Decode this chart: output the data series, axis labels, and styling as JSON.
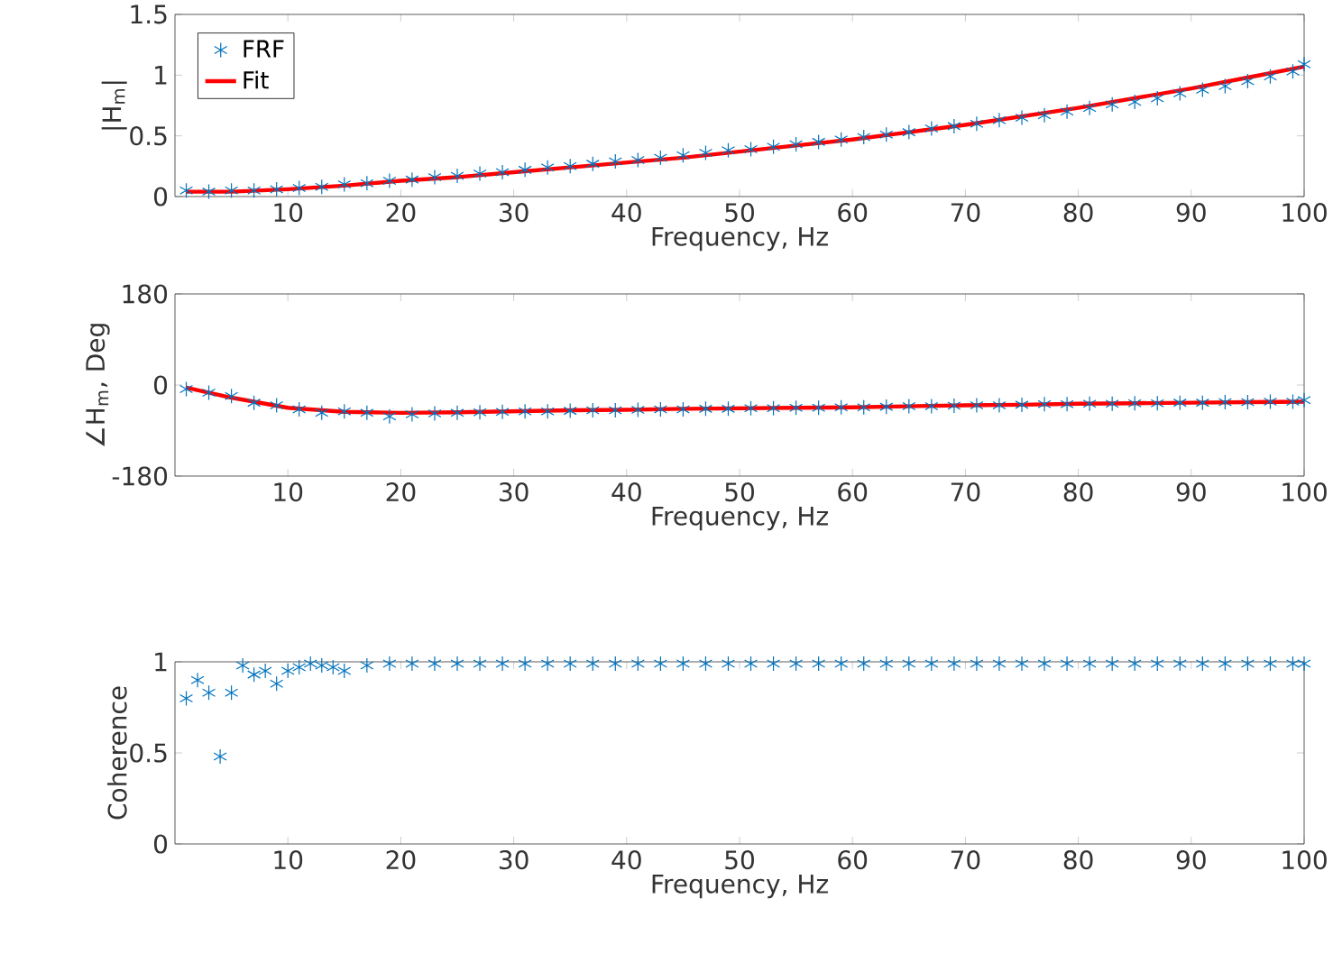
{
  "chart_data": [
    {
      "type": "scatter",
      "xlabel": "Frequency, Hz",
      "ylabel": "|H$_{m}$|",
      "xlim": [
        0,
        100
      ],
      "xticks": [
        10,
        20,
        30,
        40,
        50,
        60,
        70,
        80,
        90,
        100
      ],
      "ylim": [
        0,
        1.5
      ],
      "yticks": [
        0,
        0.5,
        1,
        1.5
      ],
      "legend": "top left",
      "series": [
        {
          "name": "FRF",
          "marker": "cross",
          "color": "#0072bd",
          "x": [
            1,
            3,
            5,
            7,
            9,
            11,
            13,
            15,
            17,
            19,
            21,
            23,
            25,
            27,
            29,
            31,
            33,
            35,
            37,
            39,
            41,
            43,
            45,
            47,
            49,
            51,
            53,
            55,
            57,
            59,
            61,
            63,
            65,
            67,
            69,
            71,
            73,
            75,
            77,
            79,
            81,
            83,
            85,
            87,
            89,
            91,
            93,
            95,
            97,
            99,
            100
          ],
          "values": [
            0.05,
            0.04,
            0.05,
            0.05,
            0.06,
            0.07,
            0.08,
            0.1,
            0.11,
            0.13,
            0.14,
            0.16,
            0.17,
            0.19,
            0.2,
            0.22,
            0.24,
            0.25,
            0.27,
            0.29,
            0.3,
            0.32,
            0.34,
            0.36,
            0.38,
            0.39,
            0.41,
            0.43,
            0.45,
            0.47,
            0.49,
            0.51,
            0.53,
            0.56,
            0.58,
            0.6,
            0.63,
            0.65,
            0.67,
            0.7,
            0.73,
            0.76,
            0.78,
            0.81,
            0.85,
            0.88,
            0.91,
            0.95,
            0.99,
            1.03,
            1.09
          ]
        },
        {
          "name": "Fit",
          "type": "line",
          "marker": "none",
          "color": "#ff0000",
          "x": [
            1,
            5,
            10,
            15,
            20,
            25,
            30,
            35,
            40,
            45,
            50,
            55,
            60,
            65,
            70,
            75,
            80,
            85,
            90,
            95,
            100
          ],
          "values": [
            0.04,
            0.04,
            0.06,
            0.09,
            0.13,
            0.16,
            0.2,
            0.24,
            0.28,
            0.32,
            0.37,
            0.42,
            0.47,
            0.53,
            0.59,
            0.66,
            0.73,
            0.81,
            0.89,
            0.98,
            1.07
          ]
        }
      ]
    },
    {
      "type": "scatter",
      "xlabel": "Frequency, Hz",
      "ylabel": "∠H$_{m}$, Deg",
      "xlim": [
        0,
        100
      ],
      "xticks": [
        10,
        20,
        30,
        40,
        50,
        60,
        70,
        80,
        90,
        100
      ],
      "ylim": [
        -180,
        180
      ],
      "yticks": [
        -180,
        0,
        180
      ],
      "series": [
        {
          "marker": "cross",
          "color": "#0072bd",
          "x": [
            1,
            3,
            5,
            7,
            9,
            11,
            13,
            15,
            17,
            19,
            21,
            23,
            25,
            27,
            29,
            31,
            33,
            35,
            37,
            39,
            41,
            43,
            45,
            47,
            49,
            51,
            53,
            55,
            57,
            59,
            61,
            63,
            65,
            67,
            69,
            71,
            73,
            75,
            77,
            79,
            81,
            83,
            85,
            87,
            89,
            91,
            93,
            95,
            97,
            99,
            100
          ],
          "values": [
            -8,
            -15,
            -22,
            -35,
            -40,
            -48,
            -55,
            -52,
            -55,
            -62,
            -58,
            -56,
            -55,
            -54,
            -53,
            -52,
            -52,
            -51,
            -50,
            -50,
            -49,
            -48,
            -48,
            -47,
            -47,
            -46,
            -46,
            -45,
            -45,
            -44,
            -44,
            -43,
            -42,
            -42,
            -41,
            -40,
            -40,
            -39,
            -38,
            -38,
            -37,
            -37,
            -36,
            -36,
            -35,
            -35,
            -34,
            -34,
            -33,
            -33,
            -30
          ]
        },
        {
          "type": "line",
          "marker": "none",
          "color": "#ff0000",
          "x": [
            1,
            5,
            10,
            15,
            20,
            25,
            30,
            35,
            40,
            45,
            50,
            55,
            60,
            65,
            70,
            75,
            80,
            85,
            90,
            95,
            100
          ],
          "values": [
            -5,
            -25,
            -45,
            -53,
            -55,
            -54,
            -52,
            -50,
            -49,
            -47,
            -46,
            -45,
            -44,
            -42,
            -40,
            -39,
            -37,
            -36,
            -35,
            -34,
            -33
          ]
        }
      ]
    },
    {
      "type": "scatter",
      "xlabel": "Frequency, Hz",
      "ylabel": "Coherence",
      "xlim": [
        0,
        100
      ],
      "xticks": [
        10,
        20,
        30,
        40,
        50,
        60,
        70,
        80,
        90,
        100
      ],
      "ylim": [
        0,
        1
      ],
      "yticks": [
        0,
        0.5,
        1
      ],
      "series": [
        {
          "marker": "cross",
          "color": "#0072bd",
          "x": [
            1,
            2,
            3,
            4,
            5,
            6,
            7,
            8,
            9,
            10,
            11,
            12,
            13,
            14,
            15,
            17,
            19,
            21,
            23,
            25,
            27,
            29,
            31,
            33,
            35,
            37,
            39,
            41,
            43,
            45,
            47,
            49,
            51,
            53,
            55,
            57,
            59,
            61,
            63,
            65,
            67,
            69,
            71,
            73,
            75,
            77,
            79,
            81,
            83,
            85,
            87,
            89,
            91,
            93,
            95,
            97,
            99,
            100
          ],
          "values": [
            0.8,
            0.9,
            0.83,
            0.48,
            0.83,
            0.98,
            0.93,
            0.95,
            0.88,
            0.95,
            0.97,
            0.99,
            0.98,
            0.97,
            0.95,
            0.98,
            0.99,
            0.99,
            0.99,
            0.99,
            0.99,
            0.99,
            0.99,
            0.99,
            0.99,
            0.99,
            0.99,
            0.99,
            0.99,
            0.99,
            0.99,
            0.99,
            0.99,
            0.99,
            0.99,
            0.99,
            0.99,
            0.99,
            0.99,
            0.99,
            0.99,
            0.99,
            0.99,
            0.99,
            0.99,
            0.99,
            0.99,
            0.99,
            0.99,
            0.99,
            0.99,
            0.99,
            0.99,
            0.99,
            0.99,
            0.99,
            0.99,
            0.99
          ]
        }
      ]
    }
  ]
}
